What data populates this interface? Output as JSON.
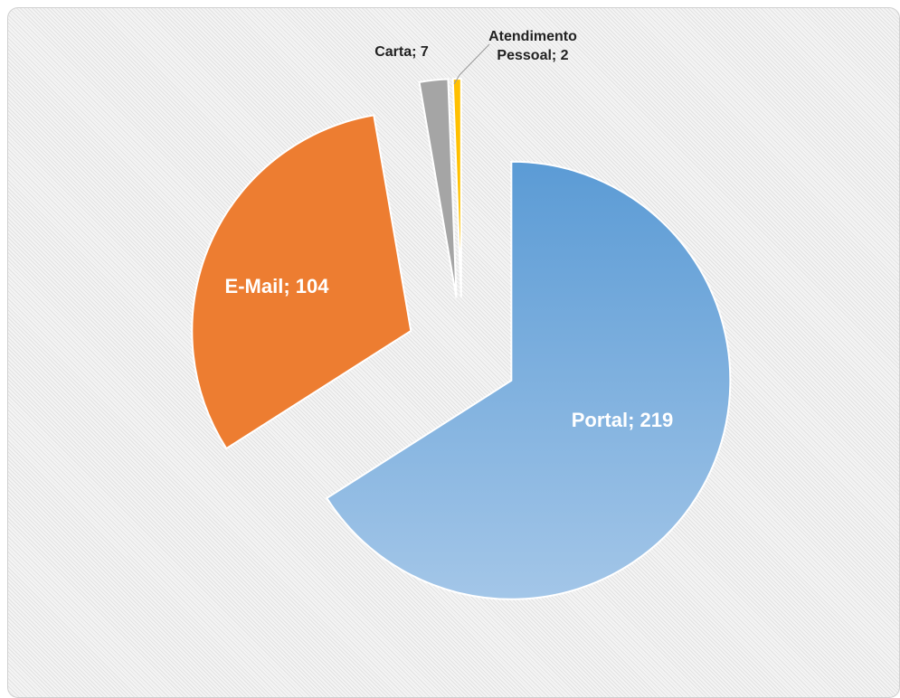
{
  "chart_data": {
    "type": "pie",
    "values": [
      219,
      104,
      7,
      2
    ],
    "value_labels": [
      "Portal; 219",
      "E-Mail; 104",
      "Carta; 7",
      "Atendimento Pessoal; 2"
    ],
    "colors": [
      "#5b9bd5",
      "#ed7d31",
      "#a5a5a5",
      "#ffc000"
    ]
  }
}
